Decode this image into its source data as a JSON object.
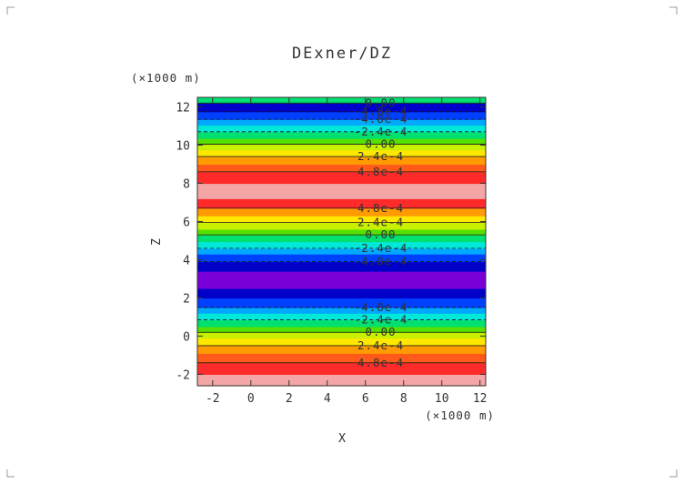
{
  "chart_data": {
    "type": "heatmap",
    "title": "DExner/DZ",
    "xlabel": "X",
    "ylabel": "Z",
    "x_unit": "(×1000 m)",
    "y_unit": "(×1000 m)",
    "xlim": [
      -2.8,
      12.3
    ],
    "ylim": [
      -2.6,
      12.5
    ],
    "xticks": [
      "-2",
      "0",
      "2",
      "4",
      "6",
      "8",
      "10",
      "12"
    ],
    "yticks": [
      "-2",
      "0",
      "2",
      "4",
      "6",
      "8",
      "10",
      "12"
    ],
    "field": "horizontally uniform bands varying with Z",
    "bands": [
      {
        "z0": -2.6,
        "z1": -2.0,
        "color": "#f4a6a6"
      },
      {
        "z0": -2.0,
        "z1": -1.4,
        "color": "#ff2a2a"
      },
      {
        "z0": -1.4,
        "z1": -0.9,
        "color": "#ff5a1a"
      },
      {
        "z0": -0.9,
        "z1": -0.5,
        "color": "#ff9a00"
      },
      {
        "z0": -0.5,
        "z1": -0.1,
        "color": "#ffe800"
      },
      {
        "z0": -0.1,
        "z1": 0.2,
        "color": "#c8f000"
      },
      {
        "z0": 0.2,
        "z1": 0.5,
        "color": "#55e000"
      },
      {
        "z0": 0.5,
        "z1": 0.85,
        "color": "#00e070"
      },
      {
        "z0": 0.85,
        "z1": 1.2,
        "color": "#00e8d8"
      },
      {
        "z0": 1.2,
        "z1": 1.5,
        "color": "#00a8ff"
      },
      {
        "z0": 1.5,
        "z1": 2.0,
        "color": "#0040ff"
      },
      {
        "z0": 2.0,
        "z1": 2.5,
        "color": "#0000c8"
      },
      {
        "z0": 2.5,
        "z1": 3.4,
        "color": "#7a00d8"
      },
      {
        "z0": 3.4,
        "z1": 3.9,
        "color": "#0000c8"
      },
      {
        "z0": 3.9,
        "z1": 4.3,
        "color": "#0040ff"
      },
      {
        "z0": 4.3,
        "z1": 4.6,
        "color": "#00a8ff"
      },
      {
        "z0": 4.6,
        "z1": 4.95,
        "color": "#00e8d8"
      },
      {
        "z0": 4.95,
        "z1": 5.3,
        "color": "#00e070"
      },
      {
        "z0": 5.3,
        "z1": 5.6,
        "color": "#55e000"
      },
      {
        "z0": 5.6,
        "z1": 5.95,
        "color": "#c8f000"
      },
      {
        "z0": 5.95,
        "z1": 6.3,
        "color": "#ffe800"
      },
      {
        "z0": 6.3,
        "z1": 6.7,
        "color": "#ff9a00"
      },
      {
        "z0": 6.7,
        "z1": 7.2,
        "color": "#ff2a2a"
      },
      {
        "z0": 7.2,
        "z1": 8.0,
        "color": "#f4a6a6"
      },
      {
        "z0": 8.0,
        "z1": 8.6,
        "color": "#ff2a2a"
      },
      {
        "z0": 8.6,
        "z1": 9.0,
        "color": "#ff5a1a"
      },
      {
        "z0": 9.0,
        "z1": 9.4,
        "color": "#ff9a00"
      },
      {
        "z0": 9.4,
        "z1": 9.75,
        "color": "#ffe800"
      },
      {
        "z0": 9.75,
        "z1": 10.05,
        "color": "#c8f000"
      },
      {
        "z0": 10.05,
        "z1": 10.35,
        "color": "#55e000"
      },
      {
        "z0": 10.35,
        "z1": 10.7,
        "color": "#00e070"
      },
      {
        "z0": 10.7,
        "z1": 11.05,
        "color": "#00e8d8"
      },
      {
        "z0": 11.05,
        "z1": 11.35,
        "color": "#00a8ff"
      },
      {
        "z0": 11.35,
        "z1": 11.75,
        "color": "#0040ff"
      },
      {
        "z0": 11.75,
        "z1": 12.2,
        "color": "#0000c8"
      },
      {
        "z0": 12.2,
        "z1": 12.5,
        "color": "#00e070"
      }
    ],
    "contours": [
      {
        "z": -1.4,
        "label": "4.8e-4",
        "dashed": false
      },
      {
        "z": -0.5,
        "label": "2.4e-4",
        "dashed": false
      },
      {
        "z": 0.2,
        "label": "0.00",
        "dashed": false
      },
      {
        "z": 0.85,
        "label": "-2.4e-4",
        "dashed": true
      },
      {
        "z": 1.5,
        "label": "-4.8e-4",
        "dashed": true
      },
      {
        "z": 3.9,
        "label": "-4.8e-4",
        "dashed": true
      },
      {
        "z": 4.6,
        "label": "-2.4e-4",
        "dashed": true
      },
      {
        "z": 5.3,
        "label": "0.00",
        "dashed": false
      },
      {
        "z": 5.95,
        "label": "2.4e-4",
        "dashed": false
      },
      {
        "z": 6.7,
        "label": "4.8e-4",
        "dashed": false
      },
      {
        "z": 8.6,
        "label": "4.8e-4",
        "dashed": false
      },
      {
        "z": 9.4,
        "label": "2.4e-4",
        "dashed": false
      },
      {
        "z": 10.05,
        "label": "0.00",
        "dashed": false
      },
      {
        "z": 10.7,
        "label": "-2.4e-4",
        "dashed": true
      },
      {
        "z": 11.35,
        "label": "-4.8e-4",
        "dashed": true
      },
      {
        "z": 11.75,
        "label": "-4.8e-4",
        "dashed": true
      },
      {
        "z": 12.2,
        "label": "0.00",
        "dashed": false
      }
    ],
    "grid": false,
    "legend": "none"
  }
}
